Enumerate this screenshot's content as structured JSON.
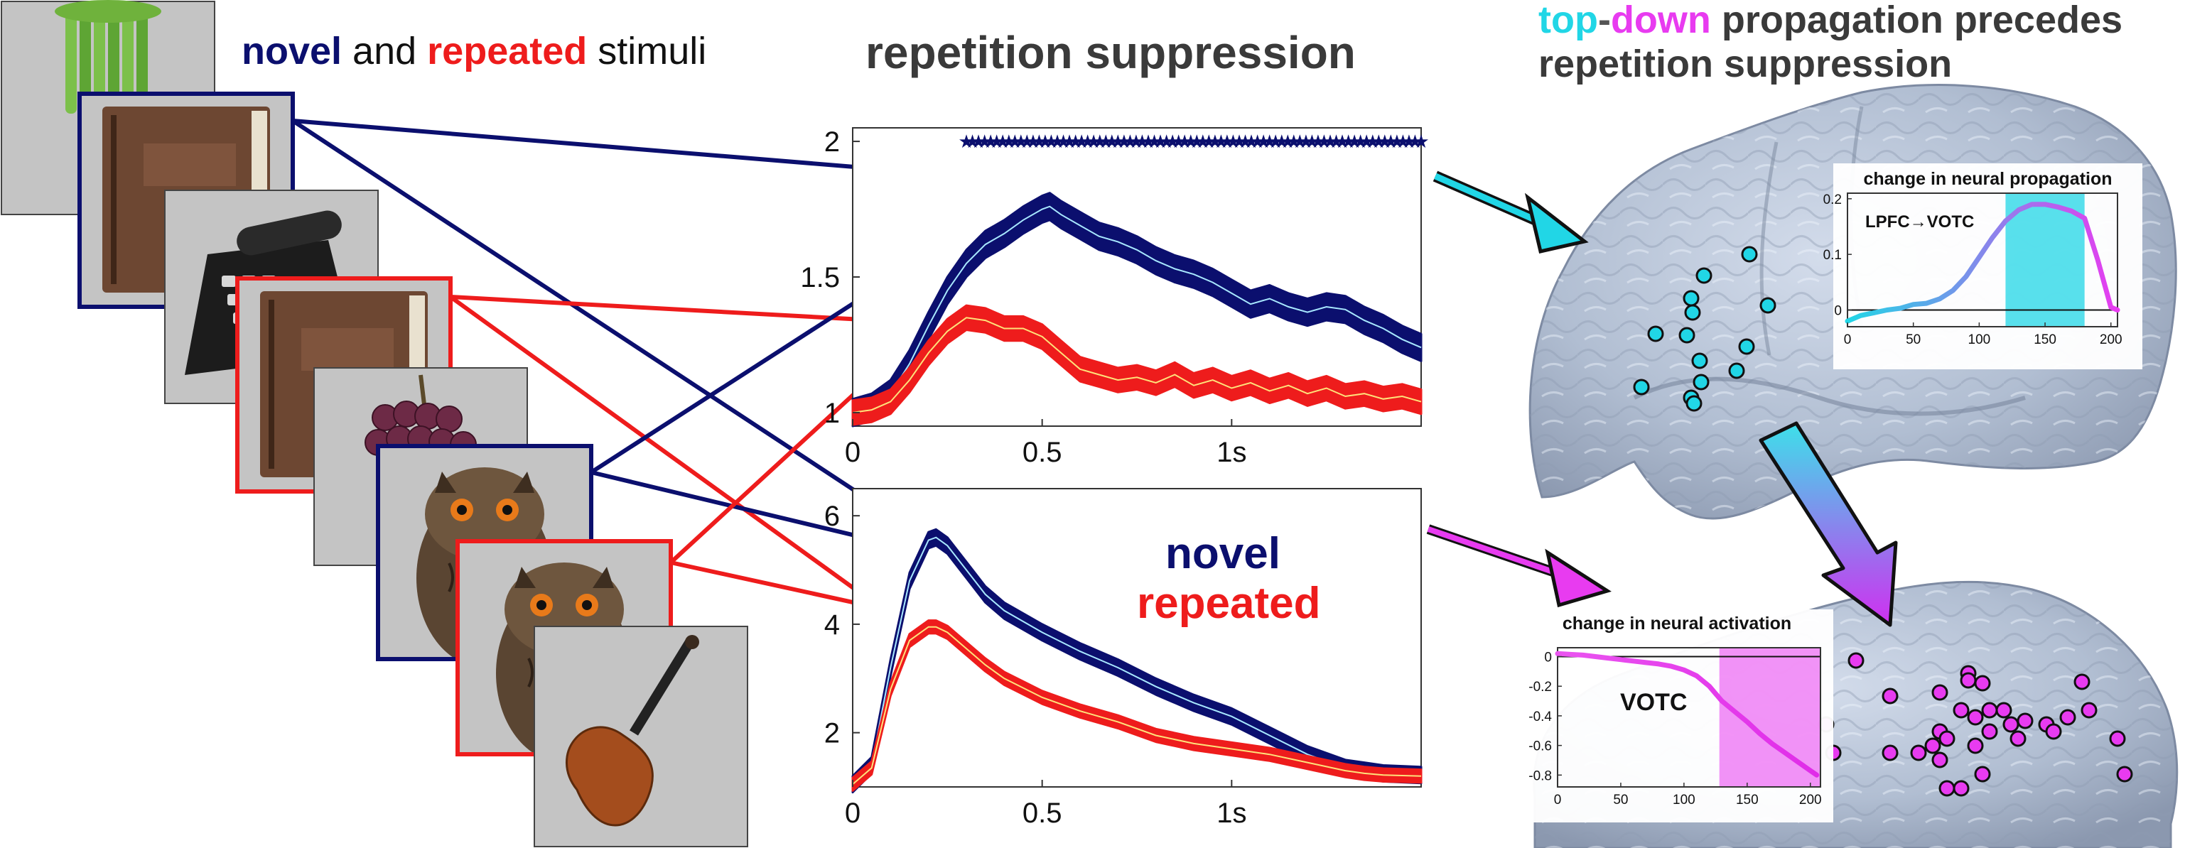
{
  "header": {
    "stimuli_title": {
      "novel": "novel",
      "and": " and ",
      "repeated": "repeated",
      "stimuli": " stimuli"
    },
    "rs_title": "repetition suppression",
    "td_title": {
      "top": "top",
      "dash": "-",
      "down": "down",
      "rest": " propagation precedes",
      "line2": "repetition suppression"
    }
  },
  "colors": {
    "novel": "#0b0f6e",
    "repeated": "#ee1c1c",
    "novel_trace": "#a8e8ff",
    "repeated_trace": "#ffe27a",
    "cyan": "#21d6e6",
    "magenta": "#e83bf0",
    "brain": "#b4c0d4",
    "photo_bg": "#c4c4c4"
  },
  "stimuli": [
    {
      "label": "celery",
      "frame": "none"
    },
    {
      "label": "book",
      "frame": "novel"
    },
    {
      "label": "telephone",
      "frame": "none"
    },
    {
      "label": "book",
      "frame": "repeated"
    },
    {
      "label": "grapes",
      "frame": "none"
    },
    {
      "label": "owl",
      "frame": "novel"
    },
    {
      "label": "owl",
      "frame": "repeated"
    },
    {
      "label": "violin",
      "frame": "none"
    }
  ],
  "chart_data": [
    {
      "type": "line",
      "title": "",
      "xlabel": "",
      "ylabel": "",
      "xlim": [
        0,
        1.5
      ],
      "ylim": [
        0.95,
        2.05
      ],
      "xticks": [
        {
          "v": 0,
          "t": "0"
        },
        {
          "v": 0.5,
          "t": "0.5"
        },
        {
          "v": 1,
          "t": "1s"
        }
      ],
      "yticks": [
        {
          "v": 1,
          "t": "1"
        },
        {
          "v": 1.5,
          "t": "1.5"
        },
        {
          "v": 2,
          "t": "2"
        }
      ],
      "significance_marker": {
        "y": 2,
        "x_start": 0.3,
        "x_end": 1.5,
        "step": 0.016
      },
      "series": [
        {
          "key": "novel",
          "x": [
            0,
            0.05,
            0.1,
            0.15,
            0.2,
            0.25,
            0.3,
            0.35,
            0.4,
            0.45,
            0.5,
            0.52,
            0.55,
            0.6,
            0.65,
            0.7,
            0.75,
            0.8,
            0.85,
            0.9,
            0.95,
            1.0,
            1.05,
            1.1,
            1.15,
            1.2,
            1.25,
            1.3,
            1.35,
            1.4,
            1.45,
            1.5
          ],
          "y": [
            1.0,
            1.02,
            1.07,
            1.18,
            1.32,
            1.45,
            1.55,
            1.62,
            1.66,
            1.71,
            1.75,
            1.76,
            1.73,
            1.69,
            1.65,
            1.63,
            1.6,
            1.56,
            1.53,
            1.51,
            1.48,
            1.44,
            1.4,
            1.42,
            1.39,
            1.37,
            1.39,
            1.38,
            1.34,
            1.31,
            1.27,
            1.24
          ],
          "err": 0.05
        },
        {
          "key": "repeated",
          "x": [
            0,
            0.05,
            0.1,
            0.15,
            0.2,
            0.25,
            0.3,
            0.35,
            0.4,
            0.45,
            0.5,
            0.55,
            0.6,
            0.65,
            0.7,
            0.75,
            0.8,
            0.85,
            0.9,
            0.95,
            1.0,
            1.05,
            1.1,
            1.15,
            1.2,
            1.25,
            1.3,
            1.35,
            1.4,
            1.45,
            1.5
          ],
          "y": [
            1.0,
            1.01,
            1.04,
            1.12,
            1.22,
            1.3,
            1.35,
            1.34,
            1.31,
            1.31,
            1.28,
            1.22,
            1.16,
            1.14,
            1.12,
            1.13,
            1.11,
            1.14,
            1.1,
            1.12,
            1.09,
            1.11,
            1.08,
            1.1,
            1.07,
            1.09,
            1.06,
            1.07,
            1.05,
            1.06,
            1.04
          ],
          "err": 0.045
        }
      ]
    },
    {
      "type": "line",
      "title": "",
      "xlabel": "",
      "ylabel": "",
      "xlim": [
        0,
        1.5
      ],
      "ylim": [
        1,
        6.5
      ],
      "xticks": [
        {
          "v": 0,
          "t": "0"
        },
        {
          "v": 0.5,
          "t": "0.5"
        },
        {
          "v": 1,
          "t": "1s"
        }
      ],
      "yticks": [
        {
          "v": 2,
          "t": "2"
        },
        {
          "v": 4,
          "t": "4"
        },
        {
          "v": 6,
          "t": "6"
        }
      ],
      "legend": {
        "novel": "novel",
        "repeated": "repeated"
      },
      "series": [
        {
          "key": "novel",
          "x": [
            0,
            0.05,
            0.1,
            0.15,
            0.2,
            0.22,
            0.25,
            0.3,
            0.35,
            0.4,
            0.5,
            0.6,
            0.7,
            0.8,
            0.9,
            1.0,
            1.1,
            1.2,
            1.3,
            1.35,
            1.4,
            1.5
          ],
          "y": [
            1.05,
            1.4,
            3.2,
            4.8,
            5.55,
            5.6,
            5.45,
            5.0,
            4.55,
            4.25,
            3.85,
            3.5,
            3.2,
            2.85,
            2.55,
            2.3,
            1.95,
            1.6,
            1.35,
            1.3,
            1.25,
            1.22
          ],
          "err": 0.15
        },
        {
          "key": "repeated",
          "x": [
            0,
            0.05,
            0.1,
            0.15,
            0.2,
            0.22,
            0.25,
            0.3,
            0.35,
            0.4,
            0.5,
            0.6,
            0.7,
            0.8,
            0.9,
            1.0,
            1.1,
            1.2,
            1.3,
            1.35,
            1.4,
            1.5
          ],
          "y": [
            1.05,
            1.35,
            2.8,
            3.7,
            3.95,
            3.95,
            3.85,
            3.55,
            3.25,
            3.0,
            2.65,
            2.4,
            2.2,
            1.95,
            1.8,
            1.7,
            1.6,
            1.45,
            1.3,
            1.25,
            1.22,
            1.2
          ],
          "err": 0.12
        }
      ]
    },
    {
      "type": "line",
      "title": "change in neural propagation",
      "label": "LPFC→VOTC",
      "xlim": [
        0,
        205
      ],
      "ylim": [
        -0.03,
        0.21
      ],
      "xticks": [
        {
          "v": 0,
          "t": "0"
        },
        {
          "v": 50,
          "t": "50"
        },
        {
          "v": 100,
          "t": "100"
        },
        {
          "v": 150,
          "t": "150"
        },
        {
          "v": 200,
          "t": "200"
        }
      ],
      "yticks": [
        {
          "v": 0,
          "t": "0"
        },
        {
          "v": 0.1,
          "t": "0.1"
        },
        {
          "v": 0.2,
          "t": "0.2"
        }
      ],
      "highlight": {
        "x_start": 120,
        "x_end": 180
      },
      "series": [
        {
          "x": [
            0,
            10,
            20,
            30,
            40,
            50,
            60,
            70,
            80,
            90,
            100,
            110,
            120,
            130,
            140,
            150,
            160,
            170,
            180,
            190,
            200,
            205
          ],
          "y": [
            -0.02,
            -0.01,
            -0.005,
            0.0,
            0.003,
            0.01,
            0.012,
            0.02,
            0.035,
            0.06,
            0.095,
            0.13,
            0.16,
            0.18,
            0.19,
            0.19,
            0.185,
            0.178,
            0.165,
            0.09,
            0.005,
            0.0
          ]
        }
      ]
    },
    {
      "type": "line",
      "title": "change in neural activation",
      "label": "VOTC",
      "xlim": [
        0,
        208
      ],
      "ylim": [
        -0.88,
        0.06
      ],
      "xticks": [
        {
          "v": 0,
          "t": "0"
        },
        {
          "v": 50,
          "t": "50"
        },
        {
          "v": 100,
          "t": "100"
        },
        {
          "v": 150,
          "t": "150"
        },
        {
          "v": 200,
          "t": "200"
        }
      ],
      "yticks": [
        {
          "v": 0,
          "t": "0"
        },
        {
          "v": -0.2,
          "t": "-0.2"
        },
        {
          "v": -0.4,
          "t": "-0.4"
        },
        {
          "v": -0.6,
          "t": "-0.6"
        },
        {
          "v": -0.8,
          "t": "-0.8"
        }
      ],
      "highlight": {
        "x_start": 128,
        "x_end": 208
      },
      "series": [
        {
          "x": [
            0,
            10,
            20,
            30,
            40,
            50,
            60,
            70,
            80,
            90,
            100,
            110,
            120,
            130,
            140,
            150,
            160,
            170,
            180,
            190,
            200,
            205
          ],
          "y": [
            0.02,
            0.015,
            0.01,
            0.0,
            -0.01,
            -0.02,
            -0.03,
            -0.04,
            -0.05,
            -0.065,
            -0.09,
            -0.13,
            -0.2,
            -0.3,
            -0.37,
            -0.44,
            -0.52,
            -0.59,
            -0.65,
            -0.71,
            -0.77,
            -0.8
          ]
        }
      ]
    }
  ]
}
